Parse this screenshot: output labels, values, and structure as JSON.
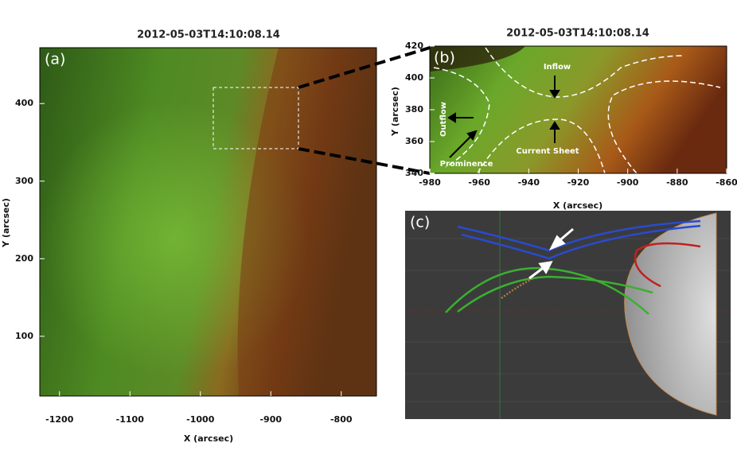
{
  "panel_a": {
    "label": "(a)",
    "title": "2012-05-03T14:10:08.14",
    "x_label": "X (arcsec)",
    "y_label": "Y (arcsec)",
    "xlim": [
      -1228,
      -750
    ],
    "ylim": [
      23,
      472
    ],
    "xticks": [
      -1200,
      -1100,
      -1000,
      -900,
      -800
    ],
    "yticks": [
      100,
      200,
      300,
      400
    ]
  },
  "panel_b": {
    "label": "(b)",
    "title": "2012-05-03T14:10:08.14",
    "x_label": "X (arcsec)",
    "y_label": "Y (arcsec)",
    "xlim": [
      -980,
      -860
    ],
    "ylim": [
      340,
      420
    ],
    "xticks": [
      -980,
      -960,
      -940,
      -920,
      -900,
      -880,
      -860
    ],
    "yticks": [
      340,
      360,
      380,
      400,
      420
    ],
    "annotations": [
      "Inflow",
      "Outflow",
      "Current Sheet",
      "Prominence"
    ]
  },
  "panel_c": {
    "label": "(c)"
  }
}
